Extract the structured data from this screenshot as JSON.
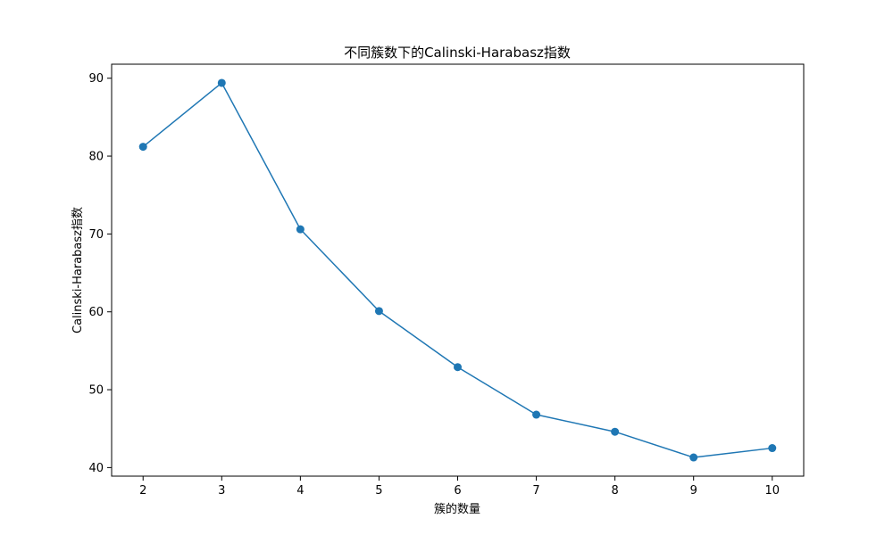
{
  "chart_data": {
    "type": "line",
    "title": "不同簇数下的Calinski-Harabasz指数",
    "xlabel": "簇的数量",
    "ylabel": "Calinski-Harabasz指数",
    "x": [
      2,
      3,
      4,
      5,
      6,
      7,
      8,
      9,
      10
    ],
    "series": [
      {
        "name": "",
        "values": [
          81.2,
          89.4,
          70.6,
          60.1,
          52.9,
          46.8,
          44.6,
          41.3,
          42.5
        ],
        "color": "#1f77b4"
      }
    ],
    "xticks": [
      "2",
      "3",
      "4",
      "5",
      "6",
      "7",
      "8",
      "9",
      "10"
    ],
    "yticks": [
      "40",
      "50",
      "60",
      "70",
      "80",
      "90"
    ],
    "xlim": [
      1.6,
      10.4
    ],
    "ylim": [
      38.9,
      91.8
    ],
    "grid": false,
    "legend": "none",
    "marker": "circle"
  }
}
